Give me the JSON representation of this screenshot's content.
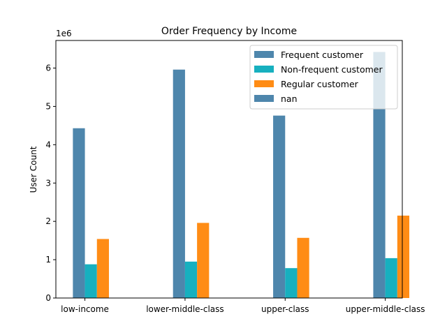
{
  "chart_data": {
    "type": "bar",
    "title": "Order Frequency by Income",
    "xlabel": "",
    "ylabel": "User Count",
    "y_offset_label": "1e6",
    "categories": [
      "low-income",
      "lower-middle-class",
      "upper-class",
      "upper-middle-class"
    ],
    "ylim": [
      0,
      6.72
    ],
    "yticks": [
      "0",
      "1",
      "2",
      "3",
      "4",
      "5",
      "6"
    ],
    "grid": false,
    "legend_position": "upper-right",
    "series": [
      {
        "name": "Frequent customer",
        "color": "#4e86ac",
        "values": [
          4.43,
          5.96,
          4.76,
          6.42
        ]
      },
      {
        "name": "Non-frequent customer",
        "color": "#17b0bf",
        "values": [
          0.88,
          0.95,
          0.78,
          1.04
        ]
      },
      {
        "name": "Regular customer",
        "color": "#ff8c15",
        "values": [
          1.54,
          1.96,
          1.57,
          2.15
        ]
      },
      {
        "name": "nan",
        "color": "#4e86ac",
        "values": [
          0,
          0,
          0,
          0
        ]
      }
    ]
  }
}
